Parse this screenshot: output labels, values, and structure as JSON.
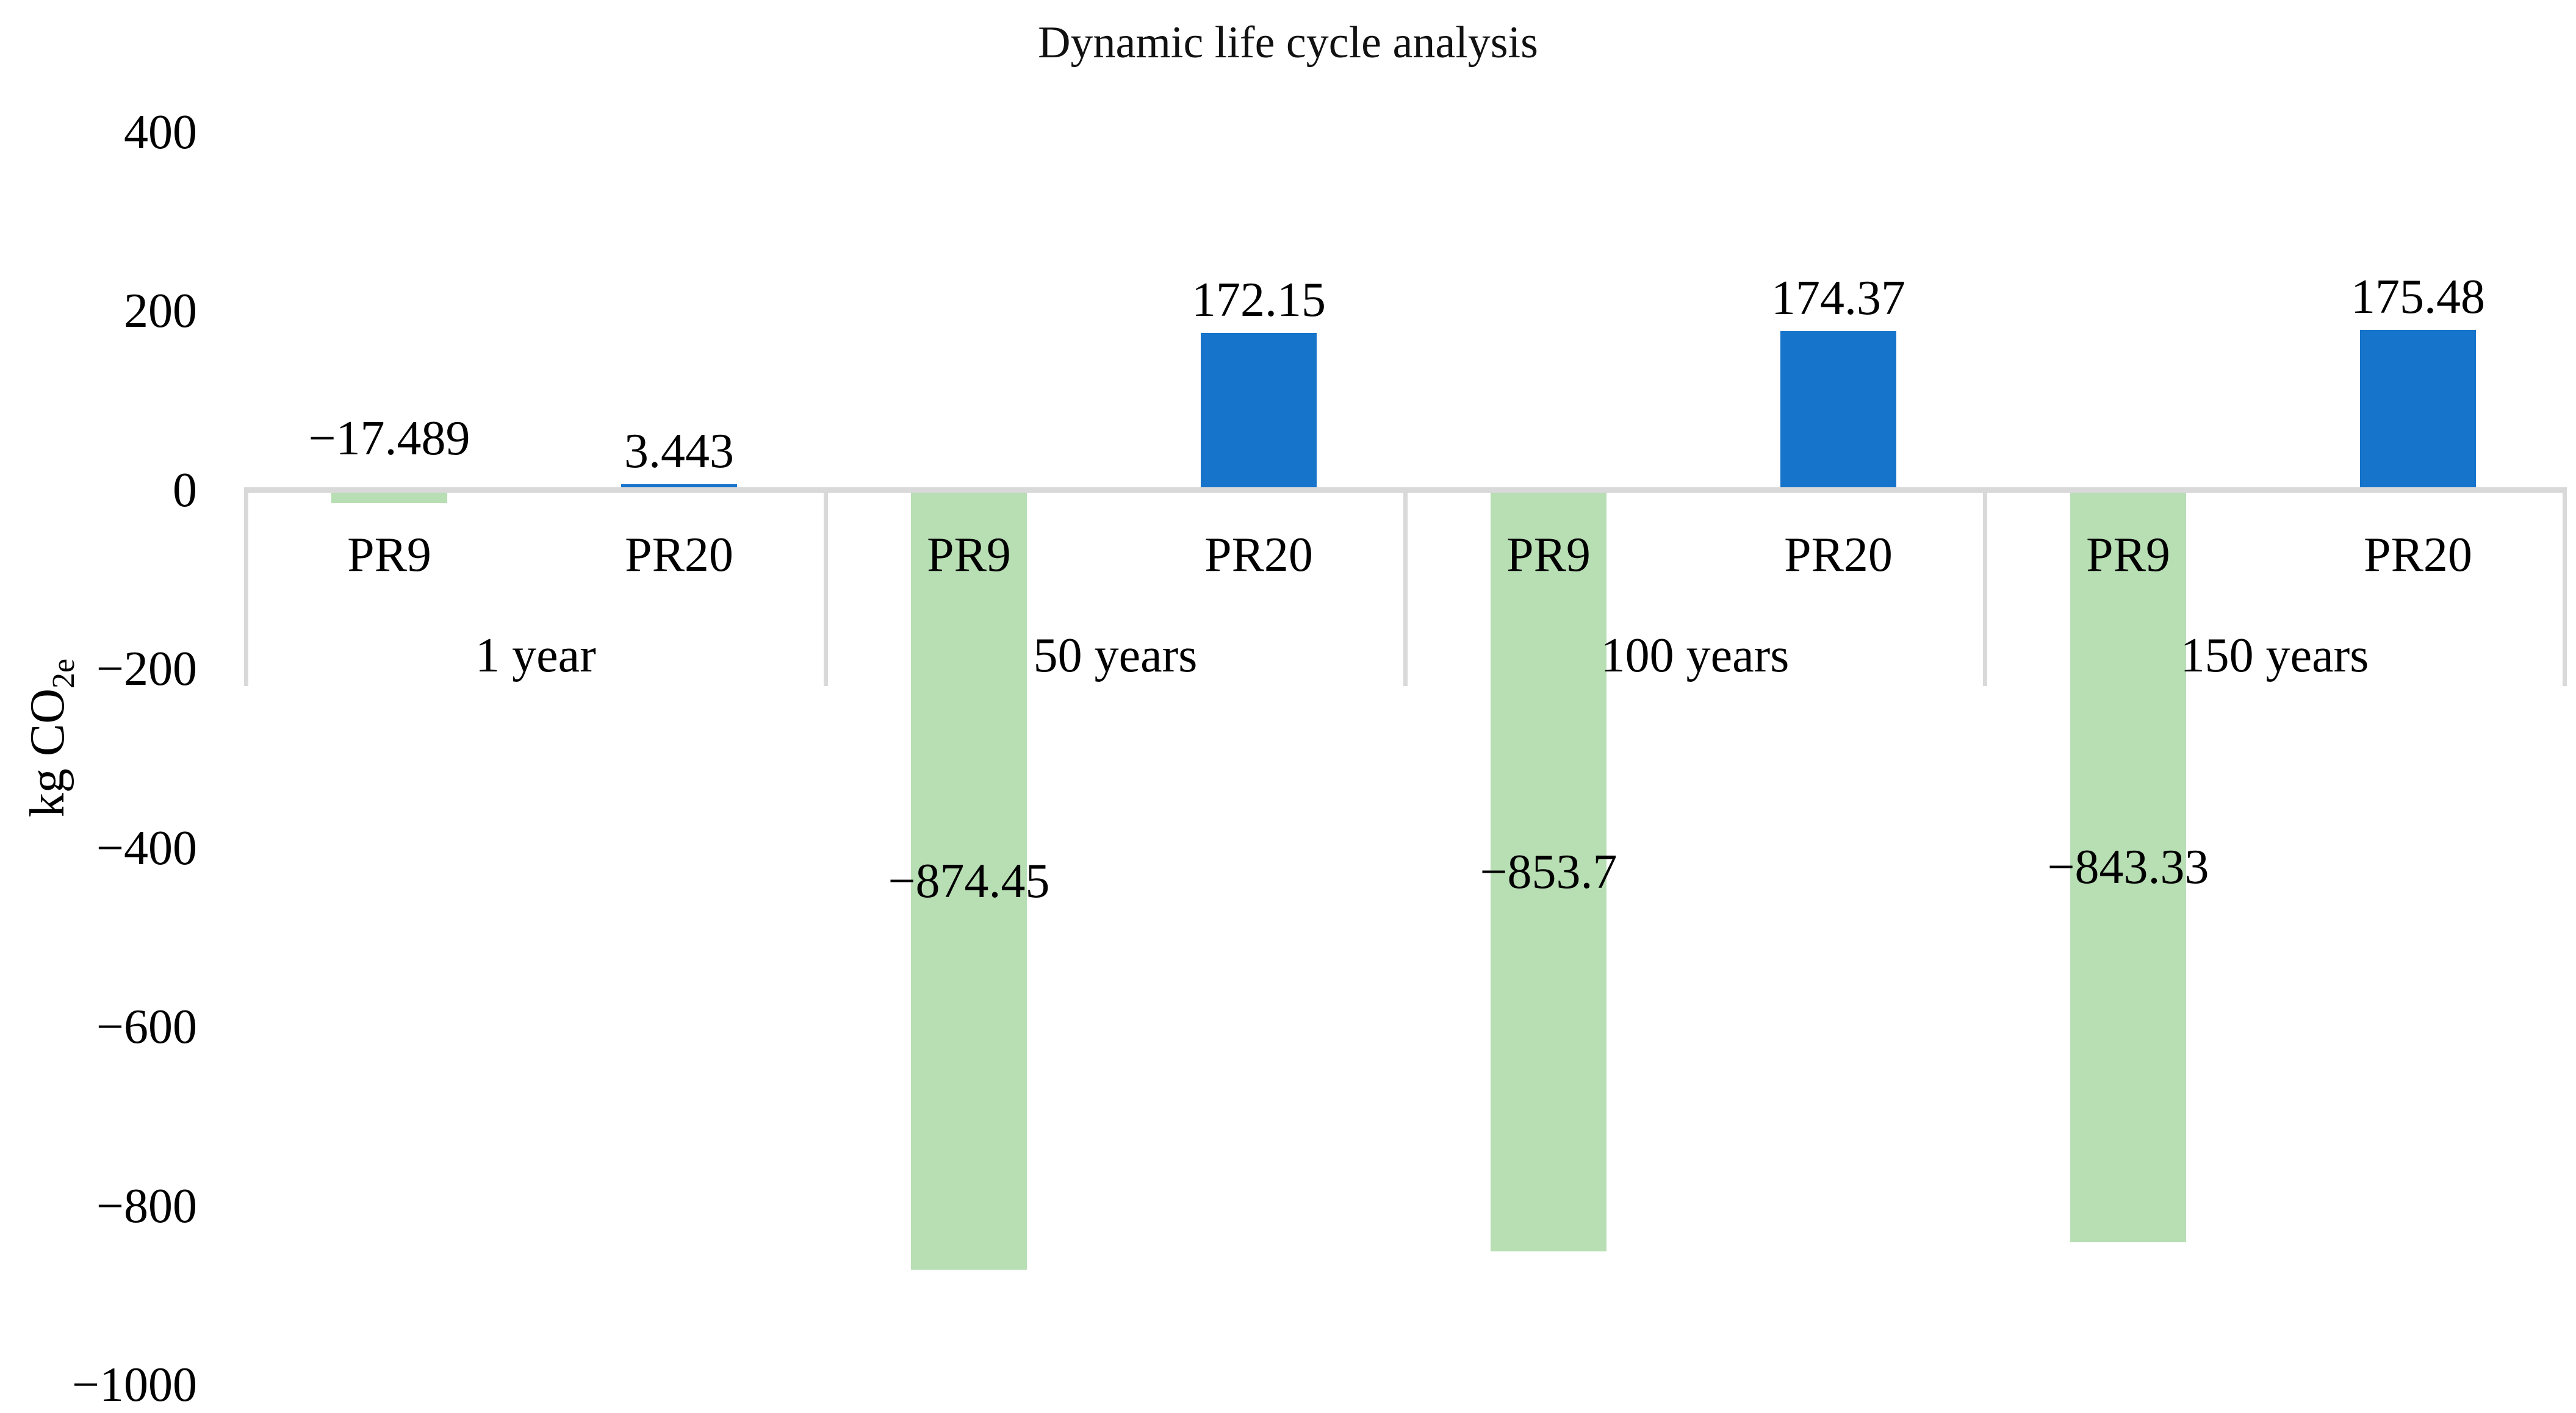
{
  "title": "Dynamic life cycle analysis",
  "y_axis": {
    "title_prefix": "kg CO",
    "title_subscript": "2e"
  },
  "colors": {
    "pr9_green": "#b8deb4",
    "pr20_blue": "#1674cb",
    "axis_gray": "#d9d9d9",
    "text_black": "#000000"
  },
  "chart_data": {
    "type": "bar",
    "title": "Dynamic life cycle analysis",
    "xlabel": "",
    "ylabel": "kg CO2e",
    "ylim": [
      -1000,
      400
    ],
    "grid": false,
    "legend": false,
    "y_ticks": [
      {
        "label": "400",
        "value": 400
      },
      {
        "label": "200",
        "value": 200
      },
      {
        "label": "0",
        "value": 0
      },
      {
        "label": "−200",
        "value": -200
      },
      {
        "label": "−400",
        "value": -400
      },
      {
        "label": "−600",
        "value": -600
      },
      {
        "label": "−800",
        "value": -800
      },
      {
        "label": "−1000",
        "value": -1000
      }
    ],
    "categories": [
      "1 year",
      "50 years",
      "100 years",
      "150 years"
    ],
    "series": [
      {
        "name": "PR9",
        "color": "#b8deb4",
        "values": [
          -17.489,
          -874.45,
          -853.7,
          -843.33
        ],
        "labels": [
          "−17.489",
          "−874.45",
          "−853.7",
          "−843.33"
        ]
      },
      {
        "name": "PR20",
        "color": "#1674cb",
        "values": [
          3.443,
          172.15,
          174.37,
          175.48
        ],
        "labels": [
          "3.443",
          "172.15",
          "174.37",
          "175.48"
        ]
      }
    ]
  }
}
